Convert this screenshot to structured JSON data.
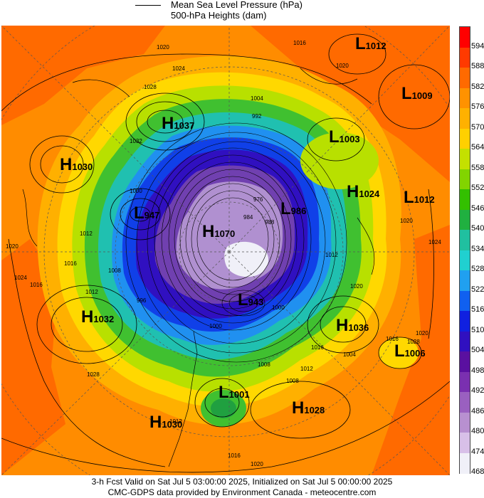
{
  "legend": {
    "mslp_label": "Mean Sea Level Pressure (hPa)",
    "heights_label": "500-hPa Heights (dam)"
  },
  "colorbar": {
    "labels": [
      "594",
      "588",
      "582",
      "576",
      "570",
      "564",
      "558",
      "552",
      "546",
      "540",
      "534",
      "528",
      "522",
      "516",
      "510",
      "504",
      "498",
      "492",
      "486",
      "480",
      "474",
      "468"
    ],
    "colors": [
      "#ff0000",
      "#ff3a00",
      "#ff6a00",
      "#ff9200",
      "#ffb100",
      "#ffd000",
      "#c4e000",
      "#82d400",
      "#33c000",
      "#20b040",
      "#20c0a0",
      "#20d0d0",
      "#20a0f0",
      "#1060f0",
      "#1020e0",
      "#3010c0",
      "#5a10a0",
      "#7a30b0",
      "#9a60c0",
      "#b890d0",
      "#d8c0e8",
      "#f0f0f8"
    ]
  },
  "systems": [
    {
      "type": "L",
      "value": "1012"
    },
    {
      "type": "L",
      "value": "1009"
    },
    {
      "type": "H",
      "value": "1037"
    },
    {
      "type": "L",
      "value": "1003"
    },
    {
      "type": "H",
      "value": "1030"
    },
    {
      "type": "H",
      "value": "1024"
    },
    {
      "type": "L",
      "value": "1012"
    },
    {
      "type": "L",
      "value": "947"
    },
    {
      "type": "H",
      "value": "1070"
    },
    {
      "type": "L",
      "value": "986"
    },
    {
      "type": "L",
      "value": "943"
    },
    {
      "type": "H",
      "value": "1032"
    },
    {
      "type": "H",
      "value": "1036"
    },
    {
      "type": "L",
      "value": "1006"
    },
    {
      "type": "L",
      "value": "1001"
    },
    {
      "type": "H",
      "value": "1028"
    },
    {
      "type": "H",
      "value": "1030"
    }
  ],
  "isobar_labels": [
    "1020",
    "1024",
    "1028",
    "1032",
    "1012",
    "1004",
    "992",
    "1000",
    "1008",
    "1016",
    "996",
    "976",
    "984",
    "988",
    "1020",
    "1012",
    "1016",
    "1024",
    "1028",
    "1008",
    "1016",
    "1020",
    "1012",
    "1004",
    "1016",
    "1012",
    "1008",
    "1020",
    "1000",
    "1000",
    "1016",
    "1012",
    "1020",
    "1016",
    "1020",
    "1024",
    "1020",
    "1028"
  ],
  "footer": {
    "line1": "3-h Fcst Valid on Sat Jul  5 03:00:00 2025, Initialized on Sat Jul  5 00:00:00 2025",
    "line2": "CMC-GDPS data provided by Environment Canada - meteocentre.com"
  }
}
